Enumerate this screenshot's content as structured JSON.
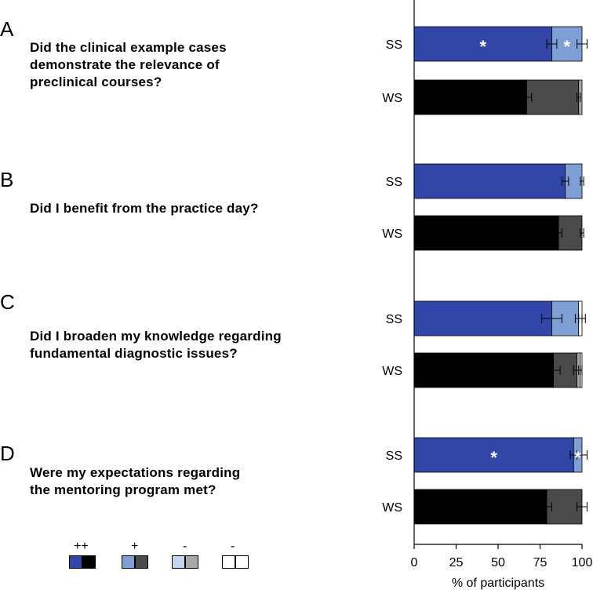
{
  "panels": [
    {
      "letter": "A",
      "question": "Did the clinical example cases\ndemonstrate the relevance of\npreclinical courses?"
    },
    {
      "letter": "B",
      "question": "Did I benefit from the practice day?"
    },
    {
      "letter": "C",
      "question": "Did I broaden my knowledge regarding\nfundamental diagnostic issues?"
    },
    {
      "letter": "D",
      "question": "Were my expectations regarding\nthe mentoring program met?"
    }
  ],
  "legend": [
    {
      "symbol": "++",
      "ss_color": "#3246a8",
      "ws_color": "#000000"
    },
    {
      "symbol": "+",
      "ss_color": "#7f9fd4",
      "ws_color": "#4a4a4a"
    },
    {
      "symbol": "-",
      "ss_color": "#c3d4ee",
      "ws_color": "#a8a8a8"
    },
    {
      "symbol": "--",
      "ss_color": "#ffffff",
      "ws_color": "#ffffff"
    }
  ],
  "chart_data": {
    "type": "bar",
    "orientation": "horizontal",
    "stacked": true,
    "xlabel": "% of participants",
    "xlim": [
      0,
      100
    ],
    "xticks": [
      0,
      25,
      50,
      75,
      100
    ],
    "categories": [
      "A-SS",
      "A-WS",
      "B-SS",
      "B-WS",
      "C-SS",
      "C-WS",
      "D-SS",
      "D-WS"
    ],
    "row_labels": [
      "SS",
      "WS",
      "SS",
      "WS",
      "SS",
      "WS",
      "SS",
      "WS"
    ],
    "series": [
      {
        "name": "++",
        "values": [
          82,
          67,
          90,
          86,
          82,
          83,
          95,
          79
        ]
      },
      {
        "name": "+",
        "values": [
          18,
          31,
          10,
          14,
          16,
          14,
          5,
          21
        ]
      },
      {
        "name": "-",
        "values": [
          0,
          2,
          0,
          0,
          0,
          2,
          0,
          0
        ]
      },
      {
        "name": "--",
        "values": [
          0,
          0,
          0,
          0,
          2,
          1,
          0,
          0
        ]
      }
    ],
    "error_bars": [
      {
        "at": [
          82,
          100
        ],
        "err": [
          3,
          3
        ]
      },
      {
        "at": [
          67,
          98
        ],
        "err": [
          3,
          1
        ]
      },
      {
        "at": [
          90,
          100
        ],
        "err": [
          2,
          1
        ]
      },
      {
        "at": [
          86,
          100
        ],
        "err": [
          2,
          1
        ]
      },
      {
        "at": [
          82,
          98,
          100
        ],
        "err": [
          6,
          2,
          2
        ]
      },
      {
        "at": [
          83,
          97,
          99
        ],
        "err": [
          4,
          2,
          1
        ]
      },
      {
        "at": [
          95,
          100
        ],
        "err": [
          2,
          3
        ]
      },
      {
        "at": [
          79,
          100
        ],
        "err": [
          3,
          3
        ]
      }
    ],
    "significance": [
      {
        "row": 0,
        "segment": "++",
        "label": "*"
      },
      {
        "row": 0,
        "segment": "+",
        "label": "*"
      },
      {
        "row": 6,
        "segment": "++",
        "label": "*"
      },
      {
        "row": 6,
        "segment": "+",
        "label": "*"
      }
    ]
  }
}
